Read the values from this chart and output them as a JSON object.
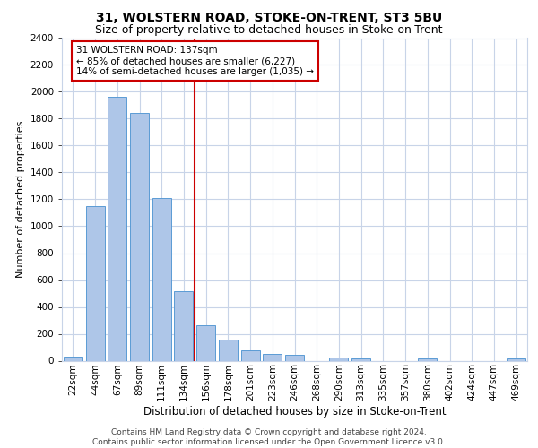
{
  "title_line1": "31, WOLSTERN ROAD, STOKE-ON-TRENT, ST3 5BU",
  "title_line2": "Size of property relative to detached houses in Stoke-on-Trent",
  "xlabel": "Distribution of detached houses by size in Stoke-on-Trent",
  "ylabel": "Number of detached properties",
  "footer_line1": "Contains HM Land Registry data © Crown copyright and database right 2024.",
  "footer_line2": "Contains public sector information licensed under the Open Government Licence v3.0.",
  "annotation_line1": "31 WOLSTERN ROAD: 137sqm",
  "annotation_line2": "← 85% of detached houses are smaller (6,227)",
  "annotation_line3": "14% of semi-detached houses are larger (1,035) →",
  "categories": [
    "22sqm",
    "44sqm",
    "67sqm",
    "89sqm",
    "111sqm",
    "134sqm",
    "156sqm",
    "178sqm",
    "201sqm",
    "223sqm",
    "246sqm",
    "268sqm",
    "290sqm",
    "313sqm",
    "335sqm",
    "357sqm",
    "380sqm",
    "402sqm",
    "424sqm",
    "447sqm",
    "469sqm"
  ],
  "values": [
    30,
    1150,
    1960,
    1840,
    1210,
    520,
    265,
    155,
    80,
    50,
    45,
    0,
    25,
    15,
    0,
    0,
    20,
    0,
    0,
    0,
    20
  ],
  "bar_color": "#aec6e8",
  "bar_edge_color": "#5b9bd5",
  "vline_color": "#cc0000",
  "vline_x_index": 5.5,
  "ylim": [
    0,
    2400
  ],
  "yticks": [
    0,
    200,
    400,
    600,
    800,
    1000,
    1200,
    1400,
    1600,
    1800,
    2000,
    2200,
    2400
  ],
  "background_color": "#ffffff",
  "grid_color": "#c8d4e8",
  "annotation_box_color": "#cc0000",
  "title_fontsize": 10,
  "subtitle_fontsize": 9,
  "ylabel_fontsize": 8,
  "xlabel_fontsize": 8.5,
  "tick_fontsize": 7.5,
  "annotation_fontsize": 7.5,
  "footer_fontsize": 6.5
}
